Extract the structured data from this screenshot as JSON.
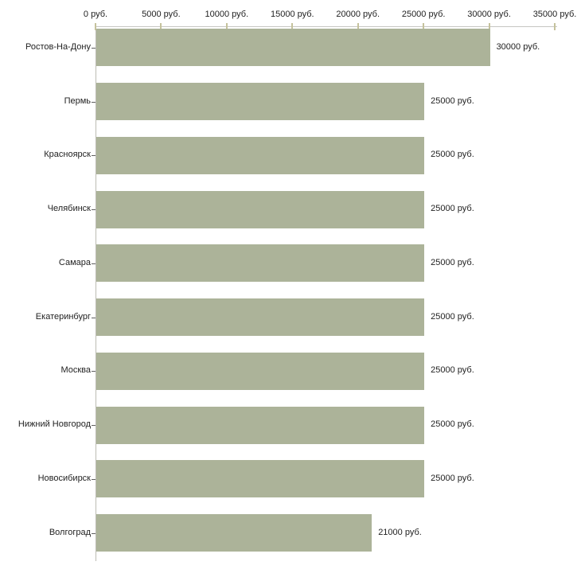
{
  "chart_data": {
    "type": "bar",
    "orientation": "horizontal",
    "title": "",
    "xlabel": "",
    "ylabel": "",
    "xlim": [
      0,
      35000
    ],
    "grid": false,
    "legend": "none",
    "categories": [
      "Ростов-На-Дону",
      "Пермь",
      "Красноярск",
      "Челябинск",
      "Самара",
      "Екатеринбург",
      "Москва",
      "Нижний Новгород",
      "Новосибирск",
      "Волгоград"
    ],
    "values": [
      30000,
      25000,
      25000,
      25000,
      25000,
      25000,
      25000,
      25000,
      25000,
      21000
    ],
    "value_labels": [
      "30000 руб.",
      "25000 руб.",
      "25000 руб.",
      "25000 руб.",
      "25000 руб.",
      "25000 руб.",
      "25000 руб.",
      "25000 руб.",
      "25000 руб.",
      "21000 руб."
    ],
    "x_ticks": [
      0,
      5000,
      10000,
      15000,
      20000,
      25000,
      30000,
      35000
    ],
    "x_tick_labels": [
      "0 руб.",
      "5000 руб.",
      "10000 руб.",
      "15000 руб.",
      "20000 руб.",
      "25000 руб.",
      "30000 руб.",
      "35000 руб."
    ],
    "colors": {
      "bar": "#acb399",
      "x_axis_line": "#c6c6c2",
      "y_axis_line": "#bcbcb4",
      "x_tick": "#c5c29c",
      "y_tick": "#5e5e5e",
      "text": "#222222"
    }
  }
}
